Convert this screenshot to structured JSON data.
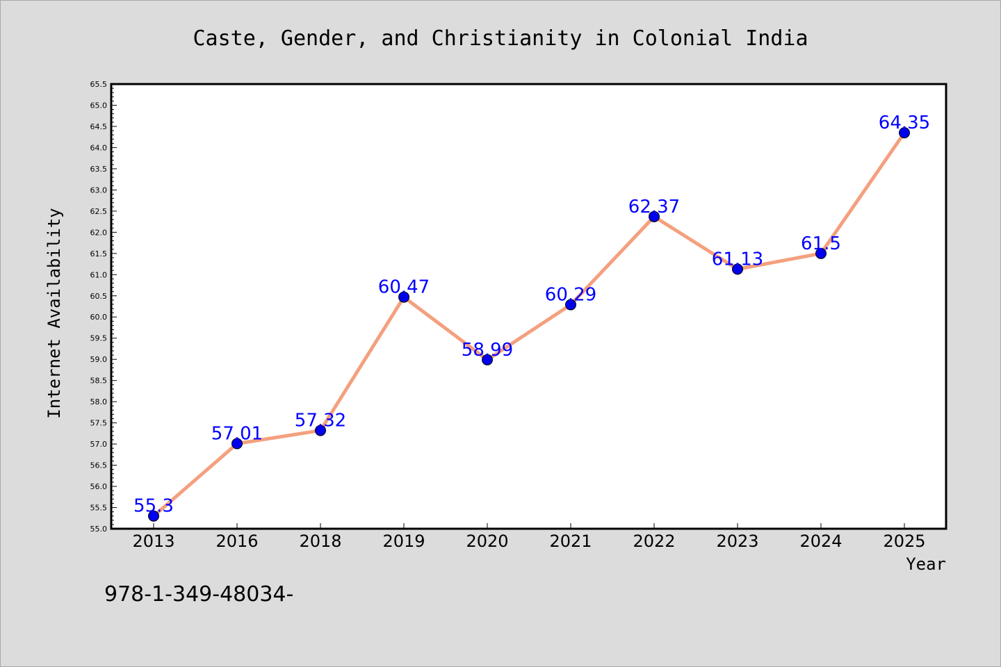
{
  "chart_data": {
    "type": "line",
    "title": "Caste, Gender, and Christianity in Colonial India",
    "xlabel": "Year",
    "ylabel": "Internet Availability",
    "categories": [
      "2013",
      "2016",
      "2018",
      "2019",
      "2020",
      "2021",
      "2022",
      "2023",
      "2024",
      "2025"
    ],
    "series": [
      {
        "values": [
          55.3,
          57.01,
          57.32,
          60.47,
          58.99,
          60.29,
          62.37,
          61.13,
          61.5,
          64.35
        ],
        "data_labels": [
          "55.3",
          "57.01",
          "57.32",
          "60.47",
          "58.99",
          "60.29",
          "62.37",
          "61.13",
          "61.5",
          "64.35"
        ],
        "line_color": "#f4a07e",
        "marker_color": "#0000ee",
        "label_color": "#0000ff"
      }
    ],
    "ylim": [
      55.0,
      65.5
    ],
    "yticks": [
      "55.0",
      "55.5",
      "56.0",
      "56.5",
      "57.0",
      "57.5",
      "58.0",
      "58.5",
      "59.0",
      "59.5",
      "60.0",
      "60.5",
      "61.0",
      "61.5",
      "62.0",
      "62.5",
      "63.0",
      "63.5",
      "64.0",
      "64.5",
      "65.0",
      "65.5"
    ],
    "grid": false,
    "legend": "none",
    "background_color": "#dcdcdc",
    "plot_background_color": "#ffffff"
  },
  "footer": {
    "text": "978-1-349-48034-"
  }
}
